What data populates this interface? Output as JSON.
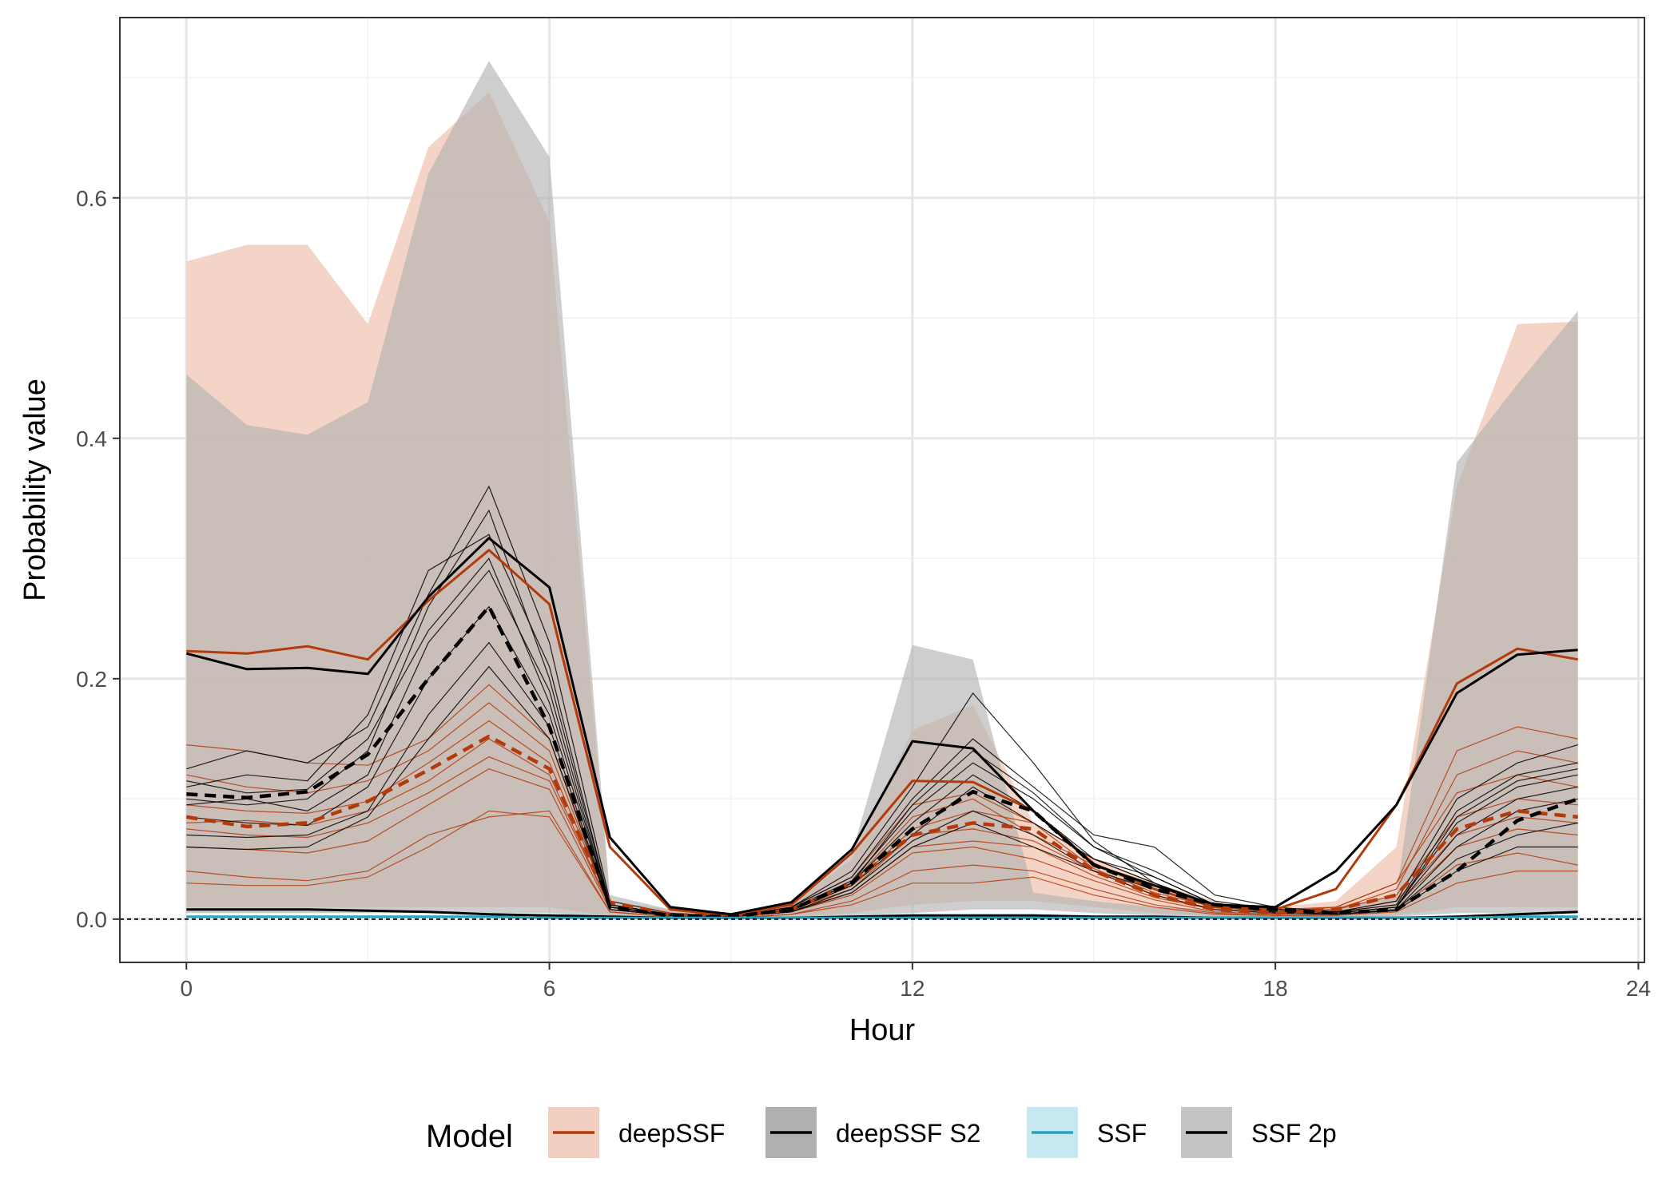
{
  "chart_data": {
    "type": "line",
    "title": "",
    "xlabel": "Hour",
    "ylabel": "Probability value",
    "xlim": [
      -1.1,
      24.1
    ],
    "ylim": [
      -0.036,
      0.75
    ],
    "x_ticks": [
      0,
      6,
      12,
      18,
      24
    ],
    "y_ticks": [
      0.0,
      0.2,
      0.4,
      0.6
    ],
    "y_tick_labels": [
      "0.0",
      "0.2",
      "0.4",
      "0.6"
    ],
    "grid": true,
    "legend_title": "Model",
    "legend_position": "bottom",
    "reference_line": {
      "y": 0,
      "style": "dashed",
      "color": "#000000"
    },
    "colors": {
      "deepSSF_line": "#b33a0a",
      "deepSSF_fill": "#f2cfc0",
      "deepSSF_S2_line": "#000000",
      "deepSSF_S2_fill": "#b0b0b0",
      "SSF_line": "#2aa0bf",
      "SSF_fill": "#c6e9ef",
      "SSF_2p_line": "#000000",
      "SSF_2p_fill": "#c4c4c4",
      "overlap_fill": "#bca89f"
    },
    "legend": [
      {
        "key": "deepSSF",
        "label": "deepSSF"
      },
      {
        "key": "deepSSF_S2",
        "label": "deepSSF S2"
      },
      {
        "key": "SSF",
        "label": "SSF"
      },
      {
        "key": "SSF_2p",
        "label": "SSF 2p"
      }
    ],
    "x": [
      0,
      1,
      2,
      3,
      4,
      5,
      6,
      7,
      8,
      9,
      10,
      11,
      12,
      13,
      14,
      15,
      16,
      17,
      18,
      19,
      20,
      21,
      22,
      23
    ],
    "ribbons": [
      {
        "model": "deepSSF",
        "lower": [
          0.01,
          0.01,
          0.01,
          0.01,
          0.01,
          0.01,
          0.01,
          0.002,
          0.001,
          0.001,
          0.001,
          0.005,
          0.012,
          0.015,
          0.015,
          0.01,
          0.005,
          0.002,
          0.001,
          0.001,
          0.003,
          0.01,
          0.01,
          0.01
        ],
        "upper": [
          0.547,
          0.561,
          0.561,
          0.495,
          0.642,
          0.688,
          0.58,
          0.015,
          0.008,
          0.005,
          0.012,
          0.05,
          0.157,
          0.178,
          0.08,
          0.05,
          0.03,
          0.015,
          0.01,
          0.015,
          0.06,
          0.36,
          0.495,
          0.497
        ]
      },
      {
        "model": "deepSSF S2",
        "lower": [
          0.005,
          0.005,
          0.005,
          0.005,
          0.005,
          0.005,
          0.005,
          0.001,
          0.001,
          0.001,
          0.001,
          0.003,
          0.005,
          0.008,
          0.008,
          0.005,
          0.003,
          0.002,
          0.001,
          0.001,
          0.002,
          0.005,
          0.005,
          0.005
        ],
        "upper": [
          0.453,
          0.411,
          0.403,
          0.43,
          0.62,
          0.714,
          0.634,
          0.02,
          0.008,
          0.005,
          0.015,
          0.055,
          0.228,
          0.216,
          0.022,
          0.015,
          0.01,
          0.008,
          0.008,
          0.01,
          0.02,
          0.38,
          0.445,
          0.506
        ]
      }
    ],
    "series": [
      {
        "name": "deepSSF",
        "role": "upper",
        "style": "solid",
        "values": [
          0.223,
          0.221,
          0.227,
          0.216,
          0.265,
          0.307,
          0.262,
          0.06,
          0.008,
          0.003,
          0.012,
          0.055,
          0.115,
          0.114,
          0.09,
          0.046,
          0.025,
          0.01,
          0.008,
          0.025,
          0.095,
          0.196,
          0.225,
          0.216
        ]
      },
      {
        "name": "deepSSF S2",
        "role": "upper",
        "style": "solid",
        "values": [
          0.221,
          0.208,
          0.209,
          0.204,
          0.268,
          0.317,
          0.276,
          0.068,
          0.01,
          0.004,
          0.014,
          0.058,
          0.148,
          0.142,
          0.09,
          0.045,
          0.028,
          0.012,
          0.01,
          0.04,
          0.095,
          0.188,
          0.22,
          0.224
        ]
      },
      {
        "name": "deepSSF",
        "role": "mean",
        "style": "dashed",
        "values": [
          0.085,
          0.077,
          0.08,
          0.098,
          0.124,
          0.152,
          0.125,
          0.014,
          0.004,
          0.002,
          0.008,
          0.03,
          0.07,
          0.08,
          0.075,
          0.04,
          0.02,
          0.008,
          0.005,
          0.008,
          0.02,
          0.075,
          0.09,
          0.085
        ]
      },
      {
        "name": "deepSSF S2",
        "role": "mean",
        "style": "dashed",
        "values": [
          0.104,
          0.101,
          0.106,
          0.137,
          0.2,
          0.26,
          0.16,
          0.01,
          0.003,
          0.002,
          0.008,
          0.03,
          0.075,
          0.106,
          0.09,
          0.045,
          0.025,
          0.012,
          0.008,
          0.005,
          0.008,
          0.04,
          0.082,
          0.1
        ]
      },
      {
        "name": "SSF 2p",
        "role": "base",
        "style": "solid",
        "values": [
          0.008,
          0.008,
          0.008,
          0.007,
          0.006,
          0.004,
          0.003,
          0.002,
          0.001,
          0.001,
          0.001,
          0.002,
          0.003,
          0.003,
          0.003,
          0.002,
          0.002,
          0.001,
          0.001,
          0.001,
          0.001,
          0.002,
          0.004,
          0.006
        ]
      },
      {
        "name": "SSF",
        "role": "base",
        "style": "solid",
        "values": [
          0.002,
          0.002,
          0.002,
          0.002,
          0.002,
          0.002,
          0.001,
          0.001,
          0.001,
          0.001,
          0.001,
          0.001,
          0.001,
          0.001,
          0.001,
          0.001,
          0.001,
          0.001,
          0.001,
          0.001,
          0.001,
          0.001,
          0.002,
          0.002
        ]
      }
    ],
    "individual_lines": [
      {
        "model": "deepSSF",
        "values": [
          0.145,
          0.14,
          0.13,
          0.128,
          0.15,
          0.195,
          0.15,
          0.012,
          0.004,
          0.002,
          0.01,
          0.035,
          0.095,
          0.105,
          0.08,
          0.05,
          0.03,
          0.012,
          0.008,
          0.01,
          0.03,
          0.14,
          0.16,
          0.15
        ]
      },
      {
        "model": "deepSSF",
        "values": [
          0.12,
          0.11,
          0.105,
          0.115,
          0.14,
          0.18,
          0.14,
          0.01,
          0.004,
          0.002,
          0.008,
          0.03,
          0.085,
          0.1,
          0.07,
          0.045,
          0.025,
          0.01,
          0.006,
          0.008,
          0.025,
          0.12,
          0.14,
          0.13
        ]
      },
      {
        "model": "deepSSF",
        "values": [
          0.095,
          0.09,
          0.088,
          0.098,
          0.13,
          0.165,
          0.13,
          0.012,
          0.004,
          0.002,
          0.008,
          0.028,
          0.075,
          0.09,
          0.08,
          0.042,
          0.022,
          0.01,
          0.006,
          0.01,
          0.03,
          0.105,
          0.12,
          0.11
        ]
      },
      {
        "model": "deepSSF",
        "values": [
          0.08,
          0.082,
          0.078,
          0.09,
          0.115,
          0.15,
          0.12,
          0.01,
          0.003,
          0.002,
          0.008,
          0.025,
          0.07,
          0.075,
          0.065,
          0.04,
          0.02,
          0.008,
          0.005,
          0.008,
          0.02,
          0.085,
          0.1,
          0.095
        ]
      },
      {
        "model": "deepSSF",
        "values": [
          0.075,
          0.07,
          0.068,
          0.08,
          0.105,
          0.135,
          0.115,
          0.01,
          0.003,
          0.002,
          0.007,
          0.022,
          0.06,
          0.065,
          0.06,
          0.036,
          0.018,
          0.008,
          0.005,
          0.006,
          0.015,
          0.07,
          0.085,
          0.08
        ]
      },
      {
        "model": "deepSSF",
        "values": [
          0.06,
          0.058,
          0.055,
          0.065,
          0.095,
          0.125,
          0.108,
          0.008,
          0.003,
          0.002,
          0.006,
          0.02,
          0.055,
          0.06,
          0.05,
          0.032,
          0.016,
          0.006,
          0.004,
          0.006,
          0.012,
          0.06,
          0.075,
          0.07
        ]
      },
      {
        "model": "deepSSF",
        "values": [
          0.04,
          0.035,
          0.032,
          0.04,
          0.07,
          0.085,
          0.09,
          0.006,
          0.002,
          0.001,
          0.004,
          0.015,
          0.04,
          0.045,
          0.04,
          0.025,
          0.012,
          0.005,
          0.003,
          0.004,
          0.008,
          0.045,
          0.055,
          0.045
        ]
      },
      {
        "model": "deepSSF",
        "values": [
          0.03,
          0.028,
          0.028,
          0.035,
          0.06,
          0.09,
          0.085,
          0.006,
          0.002,
          0.001,
          0.004,
          0.012,
          0.03,
          0.03,
          0.035,
          0.02,
          0.01,
          0.004,
          0.003,
          0.003,
          0.006,
          0.03,
          0.04,
          0.04
        ]
      },
      {
        "model": "deepSSF S2",
        "values": [
          0.125,
          0.14,
          0.13,
          0.16,
          0.27,
          0.36,
          0.23,
          0.015,
          0.005,
          0.002,
          0.01,
          0.04,
          0.11,
          0.188,
          0.13,
          0.065,
          0.03,
          0.012,
          0.008,
          0.006,
          0.015,
          0.1,
          0.13,
          0.145
        ]
      },
      {
        "model": "deepSSF S2",
        "values": [
          0.11,
          0.12,
          0.115,
          0.17,
          0.29,
          0.32,
          0.21,
          0.012,
          0.004,
          0.002,
          0.01,
          0.035,
          0.1,
          0.15,
          0.11,
          0.07,
          0.06,
          0.02,
          0.01,
          0.006,
          0.012,
          0.09,
          0.12,
          0.13
        ]
      },
      {
        "model": "deepSSF S2",
        "values": [
          0.1,
          0.095,
          0.1,
          0.14,
          0.26,
          0.34,
          0.2,
          0.012,
          0.004,
          0.002,
          0.009,
          0.032,
          0.09,
          0.13,
          0.1,
          0.06,
          0.04,
          0.015,
          0.008,
          0.005,
          0.01,
          0.08,
          0.11,
          0.12
        ]
      },
      {
        "model": "deepSSF S2",
        "values": [
          0.095,
          0.1,
          0.09,
          0.12,
          0.23,
          0.29,
          0.19,
          0.01,
          0.004,
          0.002,
          0.008,
          0.03,
          0.08,
          0.12,
          0.09,
          0.05,
          0.035,
          0.012,
          0.008,
          0.005,
          0.01,
          0.07,
          0.1,
          0.11
        ]
      },
      {
        "model": "deepSSF S2",
        "values": [
          0.085,
          0.08,
          0.078,
          0.11,
          0.2,
          0.26,
          0.17,
          0.01,
          0.003,
          0.002,
          0.007,
          0.028,
          0.07,
          0.11,
          0.08,
          0.05,
          0.03,
          0.01,
          0.006,
          0.004,
          0.008,
          0.06,
          0.09,
          0.1
        ]
      },
      {
        "model": "deepSSF S2",
        "values": [
          0.07,
          0.068,
          0.07,
          0.09,
          0.17,
          0.23,
          0.16,
          0.008,
          0.003,
          0.002,
          0.006,
          0.025,
          0.065,
          0.09,
          0.07,
          0.04,
          0.025,
          0.01,
          0.006,
          0.004,
          0.008,
          0.05,
          0.07,
          0.08
        ]
      },
      {
        "model": "deepSSF S2",
        "values": [
          0.06,
          0.058,
          0.06,
          0.085,
          0.15,
          0.21,
          0.15,
          0.008,
          0.003,
          0.002,
          0.006,
          0.022,
          0.06,
          0.08,
          0.06,
          0.04,
          0.02,
          0.008,
          0.005,
          0.004,
          0.007,
          0.04,
          0.06,
          0.06
        ]
      },
      {
        "model": "deepSSF S2",
        "values": [
          0.115,
          0.105,
          0.108,
          0.15,
          0.24,
          0.3,
          0.18,
          0.01,
          0.004,
          0.002,
          0.008,
          0.03,
          0.095,
          0.14,
          0.105,
          0.06,
          0.035,
          0.012,
          0.008,
          0.005,
          0.01,
          0.085,
          0.115,
          0.125
        ]
      }
    ]
  }
}
